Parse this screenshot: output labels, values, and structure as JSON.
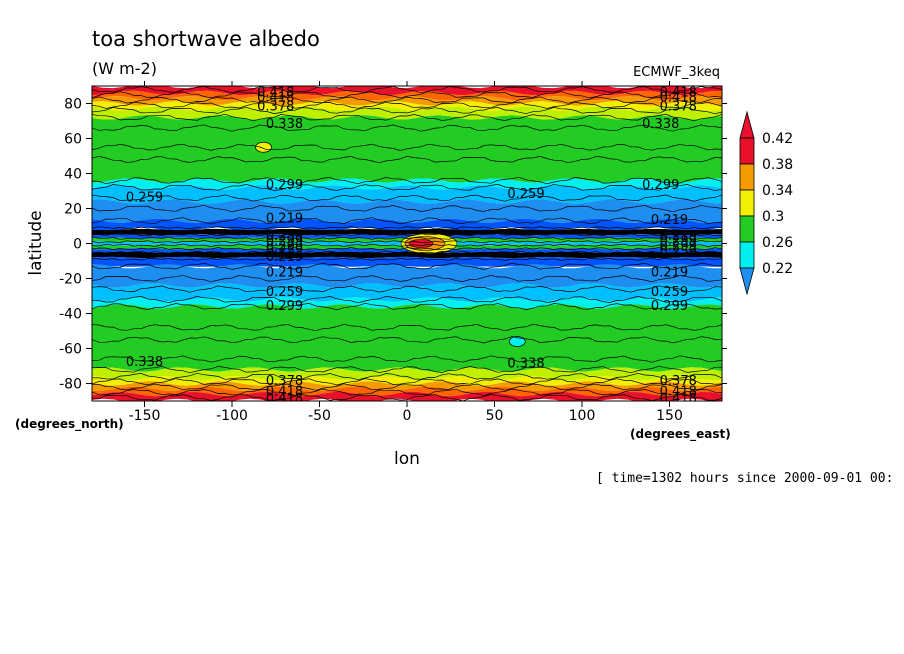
{
  "chart_data": {
    "type": "heatmap",
    "title": "toa shortwave albedo",
    "units": "(W m-2)",
    "dataset": "ECMWF_3keq",
    "xlabel": "lon",
    "ylabel": "latitude",
    "x_unit_label": "(degrees_east)",
    "y_unit_label": "(degrees_north)",
    "footer": "[ time=1302 hours since 2000-09-01 00:",
    "xlim": [
      -180,
      180
    ],
    "ylim": [
      -90,
      90
    ],
    "x_ticks": [
      {
        "value": -150,
        "label": "-150"
      },
      {
        "value": -100,
        "label": "-100"
      },
      {
        "value": -50,
        "label": "-50"
      },
      {
        "value": 0,
        "label": "0"
      },
      {
        "value": 50,
        "label": "50"
      },
      {
        "value": 100,
        "label": "100"
      },
      {
        "value": 150,
        "label": "150"
      }
    ],
    "y_ticks": [
      {
        "value": 80,
        "label": "80"
      },
      {
        "value": 60,
        "label": "60"
      },
      {
        "value": 40,
        "label": "40"
      },
      {
        "value": 20,
        "label": "20"
      },
      {
        "value": 0,
        "label": "0"
      },
      {
        "value": -20,
        "label": "-20"
      },
      {
        "value": -40,
        "label": "-40"
      },
      {
        "value": -60,
        "label": "-60"
      },
      {
        "value": -80,
        "label": "-80"
      }
    ],
    "colorbar": {
      "labels": [
        "0.42",
        "0.38",
        "0.34",
        "0.3",
        "0.26",
        "0.22"
      ],
      "colors": [
        "#e8102a",
        "#f59b00",
        "#f2f000",
        "#22cc22",
        "#00f0f0",
        "#1e8ff0"
      ],
      "top_arrow_color": "#e8102a",
      "bottom_arrow_color": "#1e8ff0"
    },
    "zonal_bands": [
      {
        "lat_from": 90,
        "lat_to": 86,
        "color": "#e8102a"
      },
      {
        "lat_from": 86,
        "lat_to": 83,
        "color": "#ff6600"
      },
      {
        "lat_from": 83,
        "lat_to": 80,
        "color": "#f59b00"
      },
      {
        "lat_from": 80,
        "lat_to": 77,
        "color": "#f2f000"
      },
      {
        "lat_from": 77,
        "lat_to": 72,
        "color": "#bff000"
      },
      {
        "lat_from": 72,
        "lat_to": 36,
        "color": "#22cc22"
      },
      {
        "lat_from": 36,
        "lat_to": 32,
        "color": "#00f0f0"
      },
      {
        "lat_from": 32,
        "lat_to": 24,
        "color": "#00bfff"
      },
      {
        "lat_from": 24,
        "lat_to": 13,
        "color": "#1e8ff0"
      },
      {
        "lat_from": 13,
        "lat_to": 8,
        "color": "#0055ff"
      },
      {
        "lat_from": 8,
        "lat_to": 5,
        "color": "#000000"
      },
      {
        "lat_from": 5,
        "lat_to": 3,
        "color": "#0055ff"
      },
      {
        "lat_from": 3,
        "lat_to": 1,
        "color": "#22cc22"
      },
      {
        "lat_from": 1,
        "lat_to": -1,
        "color": "#00bfff"
      },
      {
        "lat_from": -1,
        "lat_to": -3,
        "color": "#22cc22"
      },
      {
        "lat_from": -3,
        "lat_to": -5,
        "color": "#0055ff"
      },
      {
        "lat_from": -5,
        "lat_to": -8,
        "color": "#000000"
      },
      {
        "lat_from": -8,
        "lat_to": -13,
        "color": "#0055ff"
      },
      {
        "lat_from": -13,
        "lat_to": -24,
        "color": "#1e8ff0"
      },
      {
        "lat_from": -24,
        "lat_to": -32,
        "color": "#00bfff"
      },
      {
        "lat_from": -32,
        "lat_to": -36,
        "color": "#00f0f0"
      },
      {
        "lat_from": -36,
        "lat_to": -72,
        "color": "#22cc22"
      },
      {
        "lat_from": -72,
        "lat_to": -77,
        "color": "#bff000"
      },
      {
        "lat_from": -77,
        "lat_to": -80,
        "color": "#f2f000"
      },
      {
        "lat_from": -80,
        "lat_to": -83,
        "color": "#f59b00"
      },
      {
        "lat_from": -83,
        "lat_to": -86,
        "color": "#ff6600"
      },
      {
        "lat_from": -86,
        "lat_to": -90,
        "color": "#e8102a"
      }
    ],
    "contour_lines_lat": [
      88,
      85,
      82,
      79,
      76,
      72,
      66,
      55,
      48,
      36,
      32,
      26,
      20,
      13,
      9,
      7,
      5,
      3,
      1,
      -1,
      -3,
      -5,
      -7,
      -9,
      -13,
      -20,
      -26,
      -32,
      -36,
      -48,
      -55,
      -66,
      -72,
      -76,
      -79,
      -82,
      -85,
      -88
    ],
    "contour_labels": [
      {
        "text": "0.418",
        "lon": -75,
        "lat": 87
      },
      {
        "text": "0.418",
        "lon": -75,
        "lat": 84
      },
      {
        "text": "0.378",
        "lon": -75,
        "lat": 79
      },
      {
        "text": "0.338",
        "lon": -70,
        "lat": 69
      },
      {
        "text": "0.299",
        "lon": -70,
        "lat": 34
      },
      {
        "text": "0.259",
        "lon": -150,
        "lat": 27
      },
      {
        "text": "0.219",
        "lon": -70,
        "lat": 15
      },
      {
        "text": "0.259",
        "lon": -70,
        "lat": 5
      },
      {
        "text": "0.299",
        "lon": -70,
        "lat": 2
      },
      {
        "text": "0.299",
        "lon": -70,
        "lat": -1
      },
      {
        "text": "0.259",
        "lon": -70,
        "lat": -3
      },
      {
        "text": "0.219",
        "lon": -70,
        "lat": -7
      },
      {
        "text": "0.219",
        "lon": -70,
        "lat": -16
      },
      {
        "text": "0.259",
        "lon": -70,
        "lat": -27
      },
      {
        "text": "0.299",
        "lon": -70,
        "lat": -35
      },
      {
        "text": "0.338",
        "lon": -150,
        "lat": -67
      },
      {
        "text": "0.378",
        "lon": -70,
        "lat": -78
      },
      {
        "text": "0.418",
        "lon": -70,
        "lat": -84
      },
      {
        "text": "0.418",
        "lon": -70,
        "lat": -88
      },
      {
        "text": "0.418",
        "lon": 155,
        "lat": 87
      },
      {
        "text": "0.418",
        "lon": 155,
        "lat": 84
      },
      {
        "text": "0.378",
        "lon": 155,
        "lat": 79
      },
      {
        "text": "0.338",
        "lon": 145,
        "lat": 69
      },
      {
        "text": "0.299",
        "lon": 145,
        "lat": 34
      },
      {
        "text": "0.259",
        "lon": 68,
        "lat": 29
      },
      {
        "text": "0.219",
        "lon": 150,
        "lat": 14
      },
      {
        "text": "0.219",
        "lon": 155,
        "lat": 5
      },
      {
        "text": "0.299",
        "lon": 155,
        "lat": 2
      },
      {
        "text": "0.299",
        "lon": 155,
        "lat": -1
      },
      {
        "text": "0.259",
        "lon": 155,
        "lat": -4
      },
      {
        "text": "0.219",
        "lon": 150,
        "lat": -16
      },
      {
        "text": "0.259",
        "lon": 150,
        "lat": -27
      },
      {
        "text": "0.299",
        "lon": 150,
        "lat": -35
      },
      {
        "text": "0.338",
        "lon": 68,
        "lat": -68
      },
      {
        "text": "0.378",
        "lon": 155,
        "lat": -78
      },
      {
        "text": "0.418",
        "lon": 155,
        "lat": -84
      },
      {
        "text": "0.418",
        "lon": 155,
        "lat": -88
      }
    ],
    "features": [
      {
        "name": "equatorial-max",
        "lon": 8,
        "lat": 0,
        "colors": [
          "#e8102a",
          "#f59b00",
          "#f2f000"
        ]
      },
      {
        "name": "small-cell-north",
        "lon": -82,
        "lat": 55,
        "colors": [
          "#f2f000"
        ]
      },
      {
        "name": "small-cell-south",
        "lon": 63,
        "lat": -56,
        "colors": [
          "#00f0f0"
        ]
      }
    ],
    "grid": false
  }
}
